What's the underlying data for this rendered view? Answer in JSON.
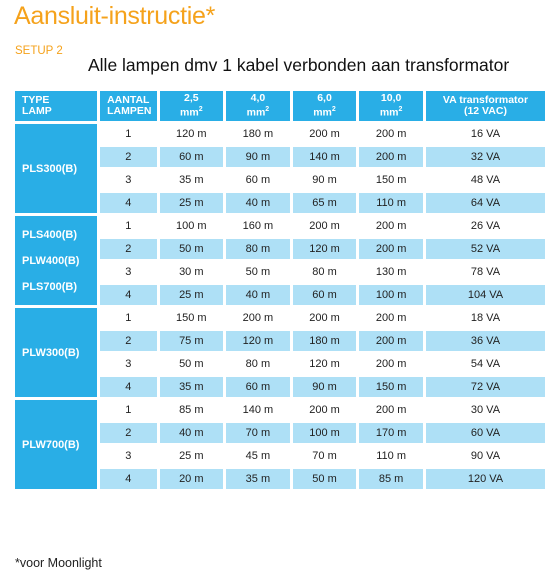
{
  "page": {
    "title": "Aansluit-instructie*",
    "setup_label": "SETUP 2",
    "subtitle": "Alle lampen dmv 1 kabel verbonden aan transformator",
    "footnote": "*voor Moonlight"
  },
  "table": {
    "headers": {
      "type": [
        "TYPE",
        "LAMP"
      ],
      "count": [
        "AANTAL",
        "LAMPEN"
      ],
      "sections": [
        "2,5",
        "4,0",
        "6,0",
        "10,0"
      ],
      "unit": "mm",
      "unit_sup": "2",
      "va": [
        "VA transformator",
        "(12 VAC)"
      ]
    },
    "groups": [
      {
        "type_lines": [
          "PLS300(B)"
        ],
        "rows": [
          {
            "n": "1",
            "v": [
              "120 m",
              "180 m",
              "200 m",
              "200 m"
            ],
            "va": "16 VA"
          },
          {
            "n": "2",
            "v": [
              "60 m",
              "90 m",
              "140 m",
              "200 m"
            ],
            "va": "32 VA"
          },
          {
            "n": "3",
            "v": [
              "35 m",
              "60 m",
              "90 m",
              "150 m"
            ],
            "va": "48 VA"
          },
          {
            "n": "4",
            "v": [
              "25 m",
              "40 m",
              "65 m",
              "110 m"
            ],
            "va": "64 VA"
          }
        ]
      },
      {
        "type_lines": [
          "PLS400(B)",
          "PLW400(B)",
          "PLS700(B)"
        ],
        "rows": [
          {
            "n": "1",
            "v": [
              "100 m",
              "160 m",
              "200 m",
              "200 m"
            ],
            "va": "26 VA"
          },
          {
            "n": "2",
            "v": [
              "50 m",
              "80 m",
              "120 m",
              "200 m"
            ],
            "va": "52 VA"
          },
          {
            "n": "3",
            "v": [
              "30 m",
              "50 m",
              "80 m",
              "130 m"
            ],
            "va": "78 VA"
          },
          {
            "n": "4",
            "v": [
              "25 m",
              "40 m",
              "60 m",
              "100 m"
            ],
            "va": "104 VA"
          }
        ]
      },
      {
        "type_lines": [
          "PLW300(B)"
        ],
        "rows": [
          {
            "n": "1",
            "v": [
              "150 m",
              "200 m",
              "200 m",
              "200 m"
            ],
            "va": "18 VA"
          },
          {
            "n": "2",
            "v": [
              "75 m",
              "120 m",
              "180 m",
              "200 m"
            ],
            "va": "36 VA"
          },
          {
            "n": "3",
            "v": [
              "50 m",
              "80 m",
              "120 m",
              "200 m"
            ],
            "va": "54 VA"
          },
          {
            "n": "4",
            "v": [
              "35 m",
              "60 m",
              "90 m",
              "150 m"
            ],
            "va": "72 VA"
          }
        ]
      },
      {
        "type_lines": [
          "PLW700(B)"
        ],
        "rows": [
          {
            "n": "1",
            "v": [
              "85 m",
              "140 m",
              "200 m",
              "200 m"
            ],
            "va": "30 VA"
          },
          {
            "n": "2",
            "v": [
              "40 m",
              "70 m",
              "100 m",
              "170 m"
            ],
            "va": "60 VA"
          },
          {
            "n": "3",
            "v": [
              "25 m",
              "45 m",
              "70 m",
              "110 m"
            ],
            "va": "90 VA"
          },
          {
            "n": "4",
            "v": [
              "20 m",
              "35 m",
              "50 m",
              "85 m"
            ],
            "va": "120 VA"
          }
        ]
      }
    ]
  }
}
